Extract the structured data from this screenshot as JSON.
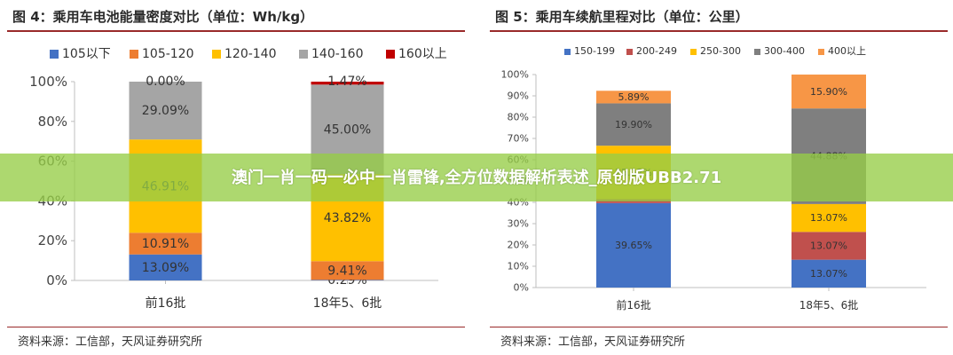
{
  "chart_data": [
    {
      "type": "bar",
      "stacked": true,
      "title": "图 4：乘用车电池能量密度对比（单位：Wh/kg）",
      "categories": [
        "前16批",
        "18年5、6批"
      ],
      "series": [
        {
          "name": "105以下",
          "color": "#4472c4",
          "values": [
            13.09,
            0.29
          ]
        },
        {
          "name": "105-120",
          "color": "#ed7d31",
          "values": [
            10.91,
            9.41
          ]
        },
        {
          "name": "120-140",
          "color": "#ffc000",
          "values": [
            46.91,
            43.82
          ]
        },
        {
          "name": "140-160",
          "color": "#a5a5a5",
          "values": [
            29.09,
            45.0
          ]
        },
        {
          "name": "160以上",
          "color": "#c00000",
          "values": [
            0.0,
            1.47
          ]
        }
      ],
      "labels": [
        [
          "13.09%",
          "10.91%",
          "46.91%",
          "29.09%",
          "0.00%"
        ],
        [
          "0.29%",
          "9.41%",
          "43.82%",
          "45.00%",
          "1.47%"
        ]
      ],
      "yticks": [
        "0%",
        "20%",
        "40%",
        "60%",
        "80%",
        "100%"
      ],
      "ylim": [
        0,
        100
      ],
      "legend_position": "top",
      "source": "资料来源：工信部，天风证券研究所"
    },
    {
      "type": "bar",
      "stacked": true,
      "title": "图 5：乘用车续航里程对比（单位：公里）",
      "categories": [
        "前16批",
        "18年5、6批"
      ],
      "series": [
        {
          "name": "150-199",
          "color": "#4472c4",
          "values": [
            39.65,
            13.07
          ]
        },
        {
          "name": "200-249",
          "color": "#c0504d",
          "values": [
            1.82,
            13.07
          ]
        },
        {
          "name": "250-300",
          "color": "#ffc000",
          "values": [
            25.12,
            13.07
          ]
        },
        {
          "name": "300-400",
          "color": "#7f7f7f",
          "values": [
            19.9,
            44.88
          ]
        },
        {
          "name": "400以上",
          "color": "#f79646",
          "values": [
            5.89,
            15.9
          ]
        }
      ],
      "labels": [
        [
          "39.65%",
          "",
          "25.12%",
          "19.90%",
          "5.89%"
        ],
        [
          "13.07%",
          "13.07%",
          "13.07%",
          "44.88%",
          "15.90%"
        ]
      ],
      "yticks": [
        "0%",
        "10%",
        "20%",
        "30%",
        "40%",
        "50%",
        "60%",
        "70%",
        "80%",
        "90%",
        "100%"
      ],
      "ylim": [
        0,
        100
      ],
      "legend_position": "top",
      "source": "资料来源：工信部，天风证券研究所"
    }
  ],
  "banner": {
    "text": "澳门一肖一码一必中一肖雷锋,全方位数据解析表述_原创版UBB2.71"
  }
}
